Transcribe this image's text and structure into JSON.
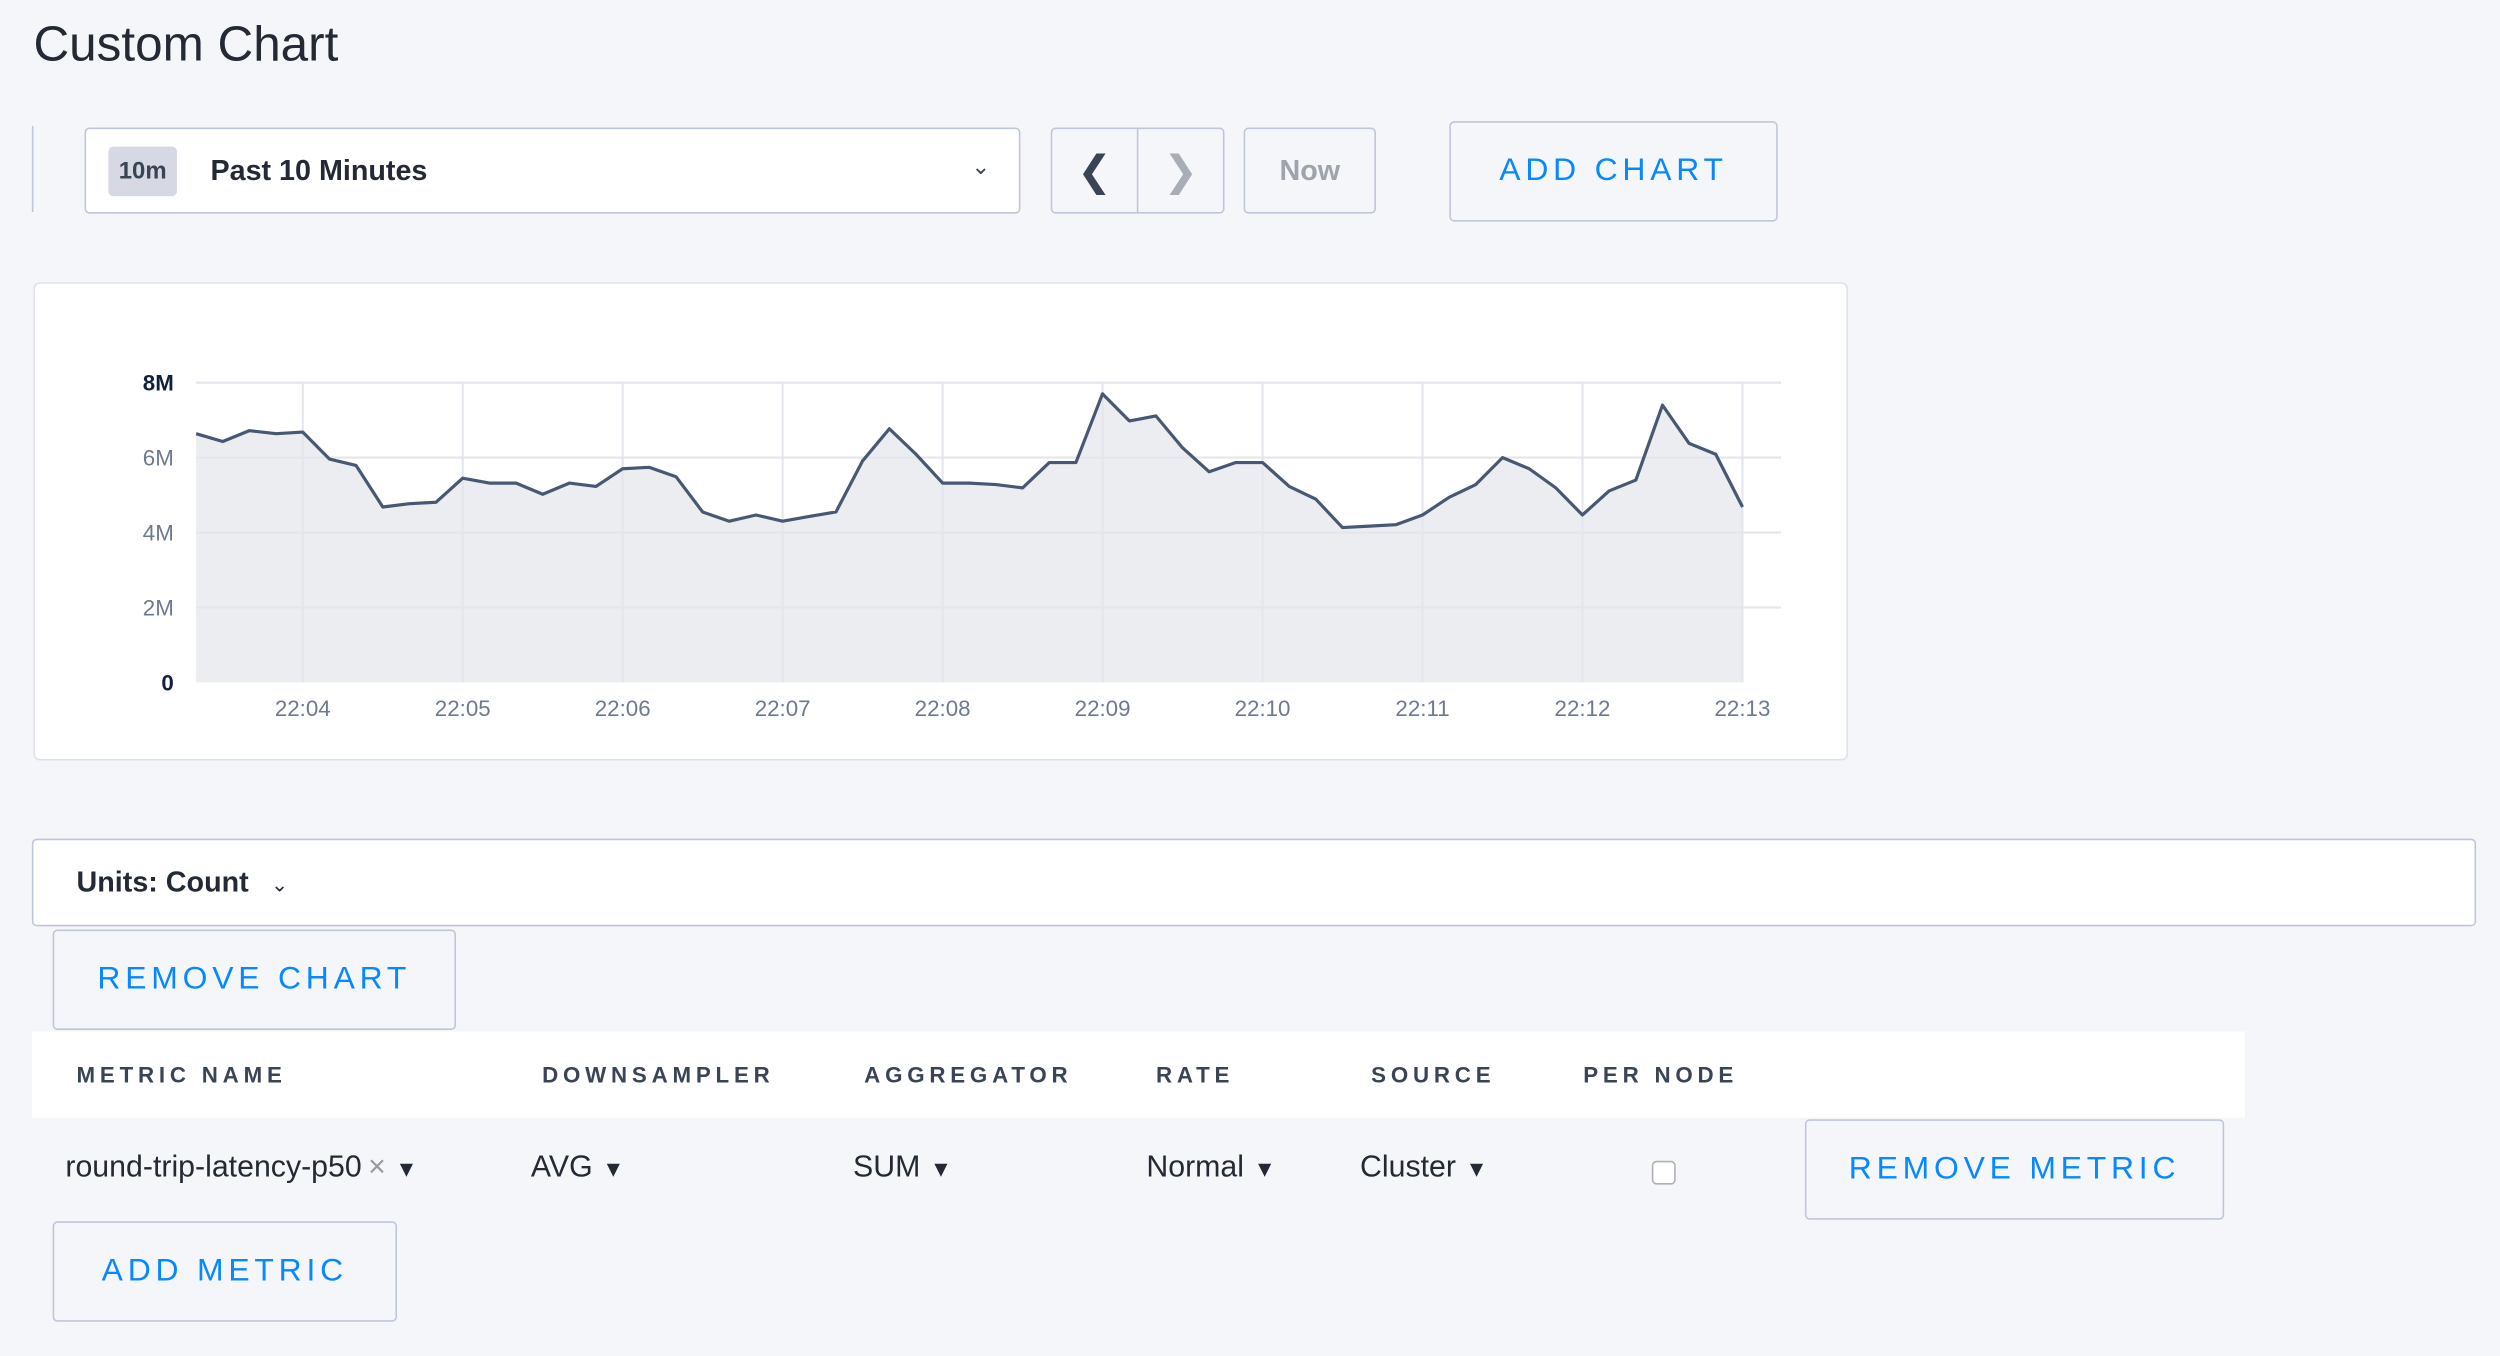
{
  "page": {
    "title": "Custom Chart"
  },
  "time_range": {
    "badge": "10m",
    "label": "Past 10 Minutes",
    "chevron_icon": "chevron-down-icon"
  },
  "nav": {
    "prev_icon": "chevron-left-icon",
    "next_icon": "chevron-right-icon",
    "now_label": "Now"
  },
  "buttons": {
    "add_chart": "ADD CHART",
    "remove_chart": "REMOVE CHART",
    "remove_metric": "REMOVE METRIC",
    "add_metric": "ADD METRIC"
  },
  "units": {
    "label": "Units: Count"
  },
  "colors": {
    "accent": "#0788ff",
    "line": "#475872",
    "area": "#ebedf1"
  },
  "table": {
    "headers": [
      "METRIC NAME",
      "DOWNSAMPLER",
      "AGGREGATOR",
      "RATE",
      "SOURCE",
      "PER NODE"
    ],
    "row": {
      "metric": "round-trip-latency-p50",
      "clear": "×",
      "downsampler": "AVG",
      "aggregator": "SUM",
      "rate": "Normal",
      "source": "Cluster",
      "per_node": false,
      "caret": "▼"
    }
  },
  "chart_data": {
    "type": "area",
    "ylim": [
      0,
      8000000
    ],
    "yticks": [
      "0",
      "2M",
      "4M",
      "6M",
      "8M"
    ],
    "yticks_values": [
      0,
      2000000,
      4000000,
      6000000,
      8000000
    ],
    "xticks": [
      "22:04",
      "22:05",
      "22:06",
      "22:07",
      "22:08",
      "22:09",
      "22:10",
      "22:11",
      "22:12",
      "22:13"
    ],
    "x_start": "22:03:20",
    "x_step_seconds": 10,
    "grid": true,
    "values_millions": [
      6.64,
      6.43,
      6.72,
      6.64,
      6.68,
      5.96,
      5.79,
      4.68,
      4.77,
      4.81,
      5.45,
      5.32,
      5.32,
      5.02,
      5.32,
      5.23,
      5.7,
      5.74,
      5.49,
      4.55,
      4.3,
      4.47,
      4.3,
      4.43,
      4.55,
      5.91,
      6.77,
      6.09,
      5.32,
      5.32,
      5.28,
      5.19,
      5.87,
      5.87,
      7.7,
      6.98,
      7.11,
      6.26,
      5.62,
      5.87,
      5.87,
      5.23,
      4.89,
      4.13,
      4.17,
      4.21,
      4.47,
      4.94,
      5.28,
      6.0,
      5.7,
      5.19,
      4.47,
      5.11,
      5.4,
      7.4,
      6.38,
      6.09,
      4.68
    ]
  }
}
